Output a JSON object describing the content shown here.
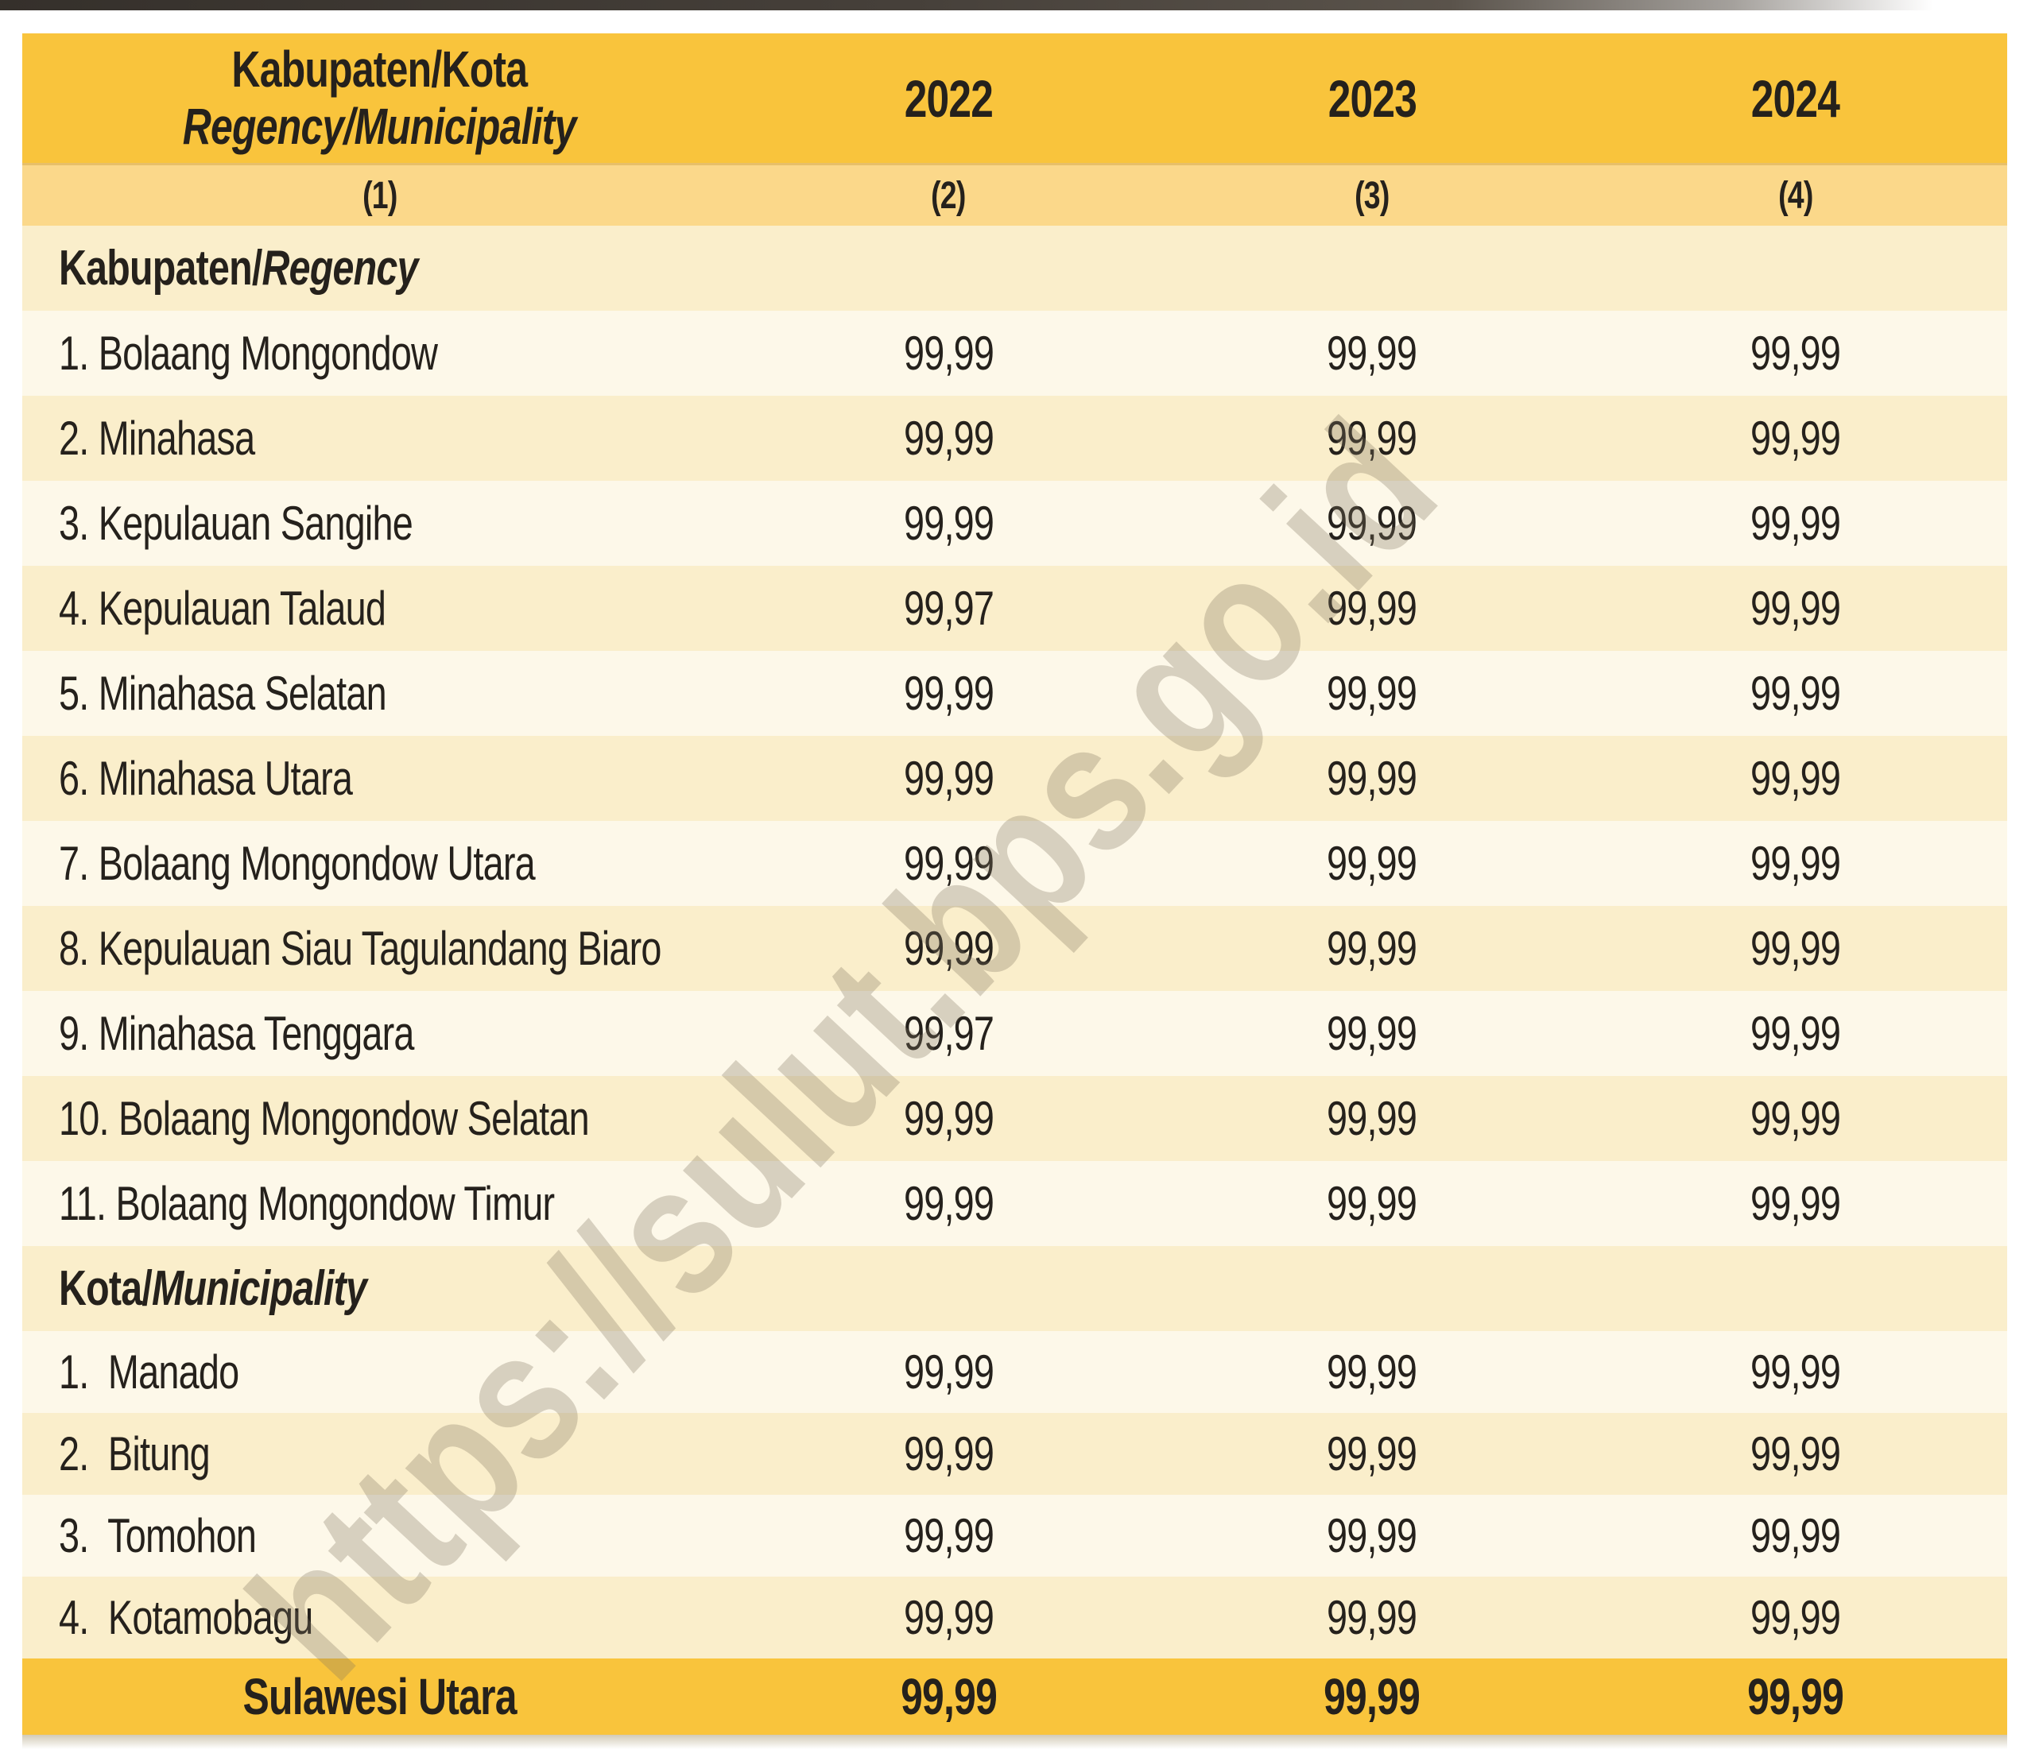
{
  "watermark": "https://sulut.bps.go.id",
  "colors": {
    "header_gold": "#F9C43C",
    "subheader_band": "#FBD88A",
    "row_light": "#FDF8E9",
    "row_dark": "#FAEECB",
    "text": "#25211C",
    "watermark_gray": "#80735F"
  },
  "table": {
    "header": {
      "col1_line1": "Kabupaten/Kota",
      "col1_line2": "Regency/Municipality",
      "years": [
        "2022",
        "2023",
        "2024"
      ]
    },
    "subheader": [
      "(1)",
      "(2)",
      "(3)",
      "(4)"
    ],
    "sections": [
      {
        "title_id": "Kabupaten/",
        "title_en": "Regency",
        "rows": [
          {
            "label": "1. Bolaang Mongondow",
            "values": [
              "99,99",
              "99,99",
              "99,99"
            ]
          },
          {
            "label": "2. Minahasa",
            "values": [
              "99,99",
              "99,99",
              "99,99"
            ]
          },
          {
            "label": "3. Kepulauan Sangihe",
            "values": [
              "99,99",
              "99,99",
              "99,99"
            ]
          },
          {
            "label": "4. Kepulauan Talaud",
            "values": [
              "99,97",
              "99,99",
              "99,99"
            ]
          },
          {
            "label": "5. Minahasa Selatan",
            "values": [
              "99,99",
              "99,99",
              "99,99"
            ]
          },
          {
            "label": "6. Minahasa Utara",
            "values": [
              "99,99",
              "99,99",
              "99,99"
            ]
          },
          {
            "label": "7. Bolaang Mongondow Utara",
            "values": [
              "99,99",
              "99,99",
              "99,99"
            ]
          },
          {
            "label": "8. Kepulauan Siau Tagulandang Biaro",
            "values": [
              "99,99",
              "99,99",
              "99,99"
            ]
          },
          {
            "label": "9. Minahasa Tenggara",
            "values": [
              "99,97",
              "99,99",
              "99,99"
            ]
          },
          {
            "label": "10. Bolaang Mongondow Selatan",
            "values": [
              "99,99",
              "99,99",
              "99,99"
            ]
          },
          {
            "label": "11. Bolaang Mongondow Timur",
            "values": [
              "99,99",
              "99,99",
              "99,99"
            ]
          }
        ]
      },
      {
        "title_id": "Kota/",
        "title_en": "Municipality",
        "rows": [
          {
            "label": "1.  Manado",
            "values": [
              "99,99",
              "99,99",
              "99,99"
            ]
          },
          {
            "label": "2.  Bitung",
            "values": [
              "99,99",
              "99,99",
              "99,99"
            ]
          },
          {
            "label": "3.  Tomohon",
            "values": [
              "99,99",
              "99,99",
              "99,99"
            ]
          },
          {
            "label": "4.  Kotamobagu",
            "values": [
              "99,99",
              "99,99",
              "99,99"
            ]
          }
        ]
      }
    ],
    "footer": {
      "label": "Sulawesi Utara",
      "values": [
        "99,99",
        "99,99",
        "99,99"
      ]
    }
  }
}
